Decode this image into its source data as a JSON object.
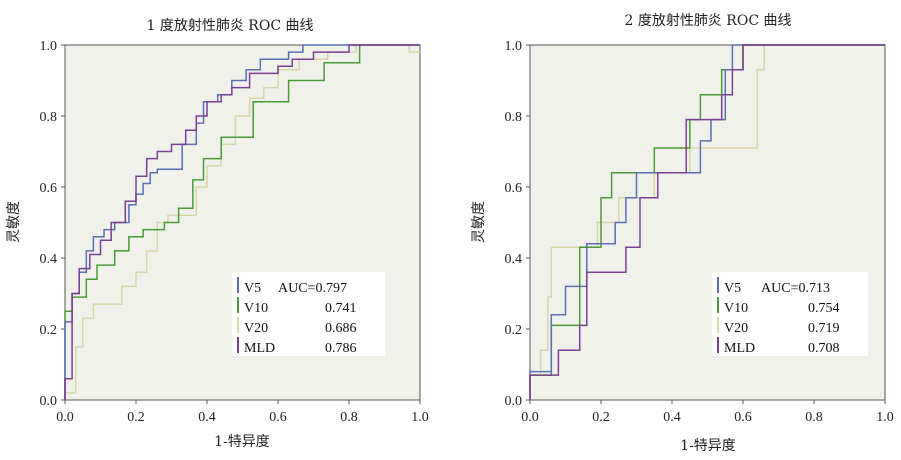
{
  "chart_data": [
    {
      "type": "line",
      "title": "1 度放射性肺炎 ROC 曲线",
      "xlabel": "1-特异度",
      "ylabel": "灵敏度",
      "xlim": [
        0,
        1
      ],
      "ylim": [
        0,
        1
      ],
      "xticks": [
        "0.0",
        "0.2",
        "0.4",
        "0.6",
        "0.8",
        "1.0"
      ],
      "yticks": [
        "0.0",
        "0.2",
        "0.4",
        "0.6",
        "0.8",
        "1.0"
      ],
      "legend_position": "bottom-right",
      "auc_header": "AUC=",
      "series": [
        {
          "name": "V5",
          "auc": "0.797",
          "color": "#5b6fb4",
          "x": [
            0,
            0,
            0.02,
            0.02,
            0.04,
            0.04,
            0.06,
            0.06,
            0.08,
            0.08,
            0.11,
            0.11,
            0.14,
            0.14,
            0.18,
            0.18,
            0.2,
            0.2,
            0.22,
            0.22,
            0.24,
            0.24,
            0.26,
            0.26,
            0.33,
            0.33,
            0.37,
            0.37,
            0.39,
            0.39,
            0.43,
            0.43,
            0.47,
            0.47,
            0.51,
            0.51,
            0.55,
            0.55,
            0.63,
            0.63,
            0.67,
            0.67,
            1.0
          ],
          "y": [
            0,
            0.22,
            0.22,
            0.3,
            0.3,
            0.36,
            0.36,
            0.42,
            0.42,
            0.46,
            0.46,
            0.48,
            0.48,
            0.5,
            0.5,
            0.55,
            0.55,
            0.58,
            0.58,
            0.61,
            0.61,
            0.64,
            0.64,
            0.65,
            0.65,
            0.72,
            0.72,
            0.78,
            0.78,
            0.84,
            0.84,
            0.86,
            0.86,
            0.9,
            0.9,
            0.93,
            0.93,
            0.96,
            0.96,
            0.98,
            0.98,
            1.0,
            1.0
          ]
        },
        {
          "name": "V10",
          "auc": "0.741",
          "color": "#4a9a35",
          "x": [
            0,
            0,
            0.02,
            0.02,
            0.06,
            0.06,
            0.09,
            0.09,
            0.14,
            0.14,
            0.18,
            0.18,
            0.22,
            0.22,
            0.28,
            0.28,
            0.32,
            0.32,
            0.36,
            0.36,
            0.39,
            0.39,
            0.44,
            0.44,
            0.53,
            0.53,
            0.63,
            0.63,
            0.73,
            0.73,
            0.83,
            0.83,
            1.0
          ],
          "y": [
            0,
            0.25,
            0.25,
            0.29,
            0.29,
            0.34,
            0.34,
            0.38,
            0.38,
            0.42,
            0.42,
            0.46,
            0.46,
            0.48,
            0.48,
            0.5,
            0.5,
            0.54,
            0.54,
            0.62,
            0.62,
            0.68,
            0.68,
            0.74,
            0.74,
            0.84,
            0.84,
            0.9,
            0.9,
            0.95,
            0.95,
            1.0,
            1.0
          ]
        },
        {
          "name": "V20",
          "auc": "0.686",
          "color": "#d8d6a8",
          "x": [
            0,
            0,
            0.03,
            0.03,
            0.05,
            0.05,
            0.08,
            0.08,
            0.16,
            0.16,
            0.2,
            0.2,
            0.23,
            0.23,
            0.26,
            0.26,
            0.29,
            0.29,
            0.37,
            0.37,
            0.4,
            0.4,
            0.44,
            0.44,
            0.48,
            0.48,
            0.52,
            0.52,
            0.56,
            0.56,
            0.6,
            0.6,
            0.66,
            0.66,
            0.74,
            0.74,
            0.82,
            0.82,
            0.97,
            0.97,
            1.0
          ],
          "y": [
            0,
            0.02,
            0.02,
            0.15,
            0.15,
            0.23,
            0.23,
            0.27,
            0.27,
            0.32,
            0.32,
            0.36,
            0.36,
            0.42,
            0.42,
            0.5,
            0.5,
            0.52,
            0.52,
            0.6,
            0.6,
            0.66,
            0.66,
            0.72,
            0.72,
            0.8,
            0.8,
            0.85,
            0.85,
            0.88,
            0.88,
            0.93,
            0.93,
            0.96,
            0.96,
            0.98,
            0.98,
            1.0,
            1.0,
            0.98,
            0.98
          ]
        },
        {
          "name": "MLD",
          "auc": "0.786",
          "color": "#7b3f93",
          "x": [
            0,
            0,
            0.02,
            0.02,
            0.04,
            0.04,
            0.07,
            0.07,
            0.1,
            0.1,
            0.13,
            0.13,
            0.17,
            0.17,
            0.2,
            0.2,
            0.23,
            0.23,
            0.26,
            0.26,
            0.3,
            0.3,
            0.34,
            0.34,
            0.37,
            0.37,
            0.4,
            0.4,
            0.44,
            0.44,
            0.47,
            0.47,
            0.52,
            0.52,
            0.6,
            0.6,
            0.64,
            0.64,
            0.7,
            0.7,
            0.8,
            0.8,
            1.0
          ],
          "y": [
            0,
            0.06,
            0.06,
            0.3,
            0.3,
            0.37,
            0.37,
            0.41,
            0.41,
            0.45,
            0.45,
            0.5,
            0.5,
            0.56,
            0.56,
            0.63,
            0.63,
            0.68,
            0.68,
            0.7,
            0.7,
            0.72,
            0.72,
            0.76,
            0.76,
            0.8,
            0.8,
            0.84,
            0.84,
            0.86,
            0.86,
            0.88,
            0.88,
            0.92,
            0.92,
            0.94,
            0.94,
            0.96,
            0.96,
            0.98,
            0.98,
            1.0,
            1.0
          ]
        }
      ]
    },
    {
      "type": "line",
      "title": "2 度放射性肺炎 ROC 曲线",
      "xlabel": "1-特异度",
      "ylabel": "灵敏度",
      "xlim": [
        0,
        1
      ],
      "ylim": [
        0,
        1
      ],
      "xticks": [
        "0.0",
        "0.2",
        "0.4",
        "0.6",
        "0.8",
        "1.0"
      ],
      "yticks": [
        "0.0",
        "0.2",
        "0.4",
        "0.6",
        "0.8",
        "1.0"
      ],
      "legend_position": "bottom-right",
      "auc_header": "AUC=",
      "series": [
        {
          "name": "V5",
          "auc": "0.713",
          "color": "#5b6fb4",
          "x": [
            0,
            0,
            0.06,
            0.06,
            0.1,
            0.1,
            0.16,
            0.16,
            0.24,
            0.24,
            0.27,
            0.27,
            0.3,
            0.3,
            0.38,
            0.38,
            0.48,
            0.48,
            0.51,
            0.51,
            0.55,
            0.55,
            0.57,
            0.57,
            0.62,
            0.62,
            1.0
          ],
          "y": [
            0,
            0.08,
            0.08,
            0.24,
            0.24,
            0.32,
            0.32,
            0.44,
            0.44,
            0.5,
            0.5,
            0.57,
            0.57,
            0.64,
            0.64,
            0.64,
            0.64,
            0.73,
            0.73,
            0.79,
            0.79,
            0.93,
            0.93,
            1.0,
            1.0,
            1.0,
            1.0
          ]
        },
        {
          "name": "V10",
          "auc": "0.754",
          "color": "#4a9a35",
          "x": [
            0,
            0,
            0.06,
            0.06,
            0.14,
            0.14,
            0.2,
            0.2,
            0.23,
            0.23,
            0.29,
            0.29,
            0.35,
            0.35,
            0.41,
            0.41,
            0.45,
            0.45,
            0.48,
            0.48,
            0.5,
            0.5,
            0.54,
            0.54,
            0.57,
            0.57,
            0.6,
            0.6,
            1.0
          ],
          "y": [
            0,
            0.07,
            0.07,
            0.21,
            0.21,
            0.43,
            0.43,
            0.57,
            0.57,
            0.64,
            0.64,
            0.64,
            0.64,
            0.71,
            0.71,
            0.71,
            0.71,
            0.79,
            0.79,
            0.86,
            0.86,
            0.86,
            0.86,
            0.93,
            0.93,
            0.93,
            0.93,
            1.0,
            1.0
          ]
        },
        {
          "name": "V20",
          "auc": "0.719",
          "color": "#d8d6a8",
          "x": [
            0,
            0,
            0.03,
            0.03,
            0.05,
            0.05,
            0.06,
            0.06,
            0.12,
            0.12,
            0.19,
            0.19,
            0.25,
            0.25,
            0.29,
            0.29,
            0.35,
            0.35,
            0.45,
            0.45,
            0.48,
            0.48,
            0.52,
            0.52,
            0.64,
            0.64,
            0.66,
            0.66,
            1.0
          ],
          "y": [
            0,
            0.07,
            0.07,
            0.14,
            0.14,
            0.29,
            0.29,
            0.43,
            0.43,
            0.43,
            0.43,
            0.5,
            0.5,
            0.57,
            0.57,
            0.57,
            0.57,
            0.64,
            0.64,
            0.71,
            0.71,
            0.71,
            0.71,
            0.71,
            0.71,
            0.93,
            0.93,
            1.0,
            1.0
          ]
        },
        {
          "name": "MLD",
          "auc": "0.708",
          "color": "#7b3f93",
          "x": [
            0,
            0,
            0.06,
            0.06,
            0.08,
            0.08,
            0.14,
            0.14,
            0.16,
            0.16,
            0.27,
            0.27,
            0.31,
            0.31,
            0.36,
            0.36,
            0.44,
            0.44,
            0.49,
            0.49,
            0.54,
            0.54,
            0.57,
            0.57,
            0.6,
            0.6,
            1.0
          ],
          "y": [
            0,
            0.07,
            0.07,
            0.07,
            0.07,
            0.14,
            0.14,
            0.21,
            0.21,
            0.36,
            0.36,
            0.43,
            0.43,
            0.57,
            0.57,
            0.64,
            0.64,
            0.79,
            0.79,
            0.79,
            0.79,
            0.86,
            0.86,
            0.93,
            0.93,
            1.0,
            1.0
          ]
        }
      ]
    }
  ]
}
